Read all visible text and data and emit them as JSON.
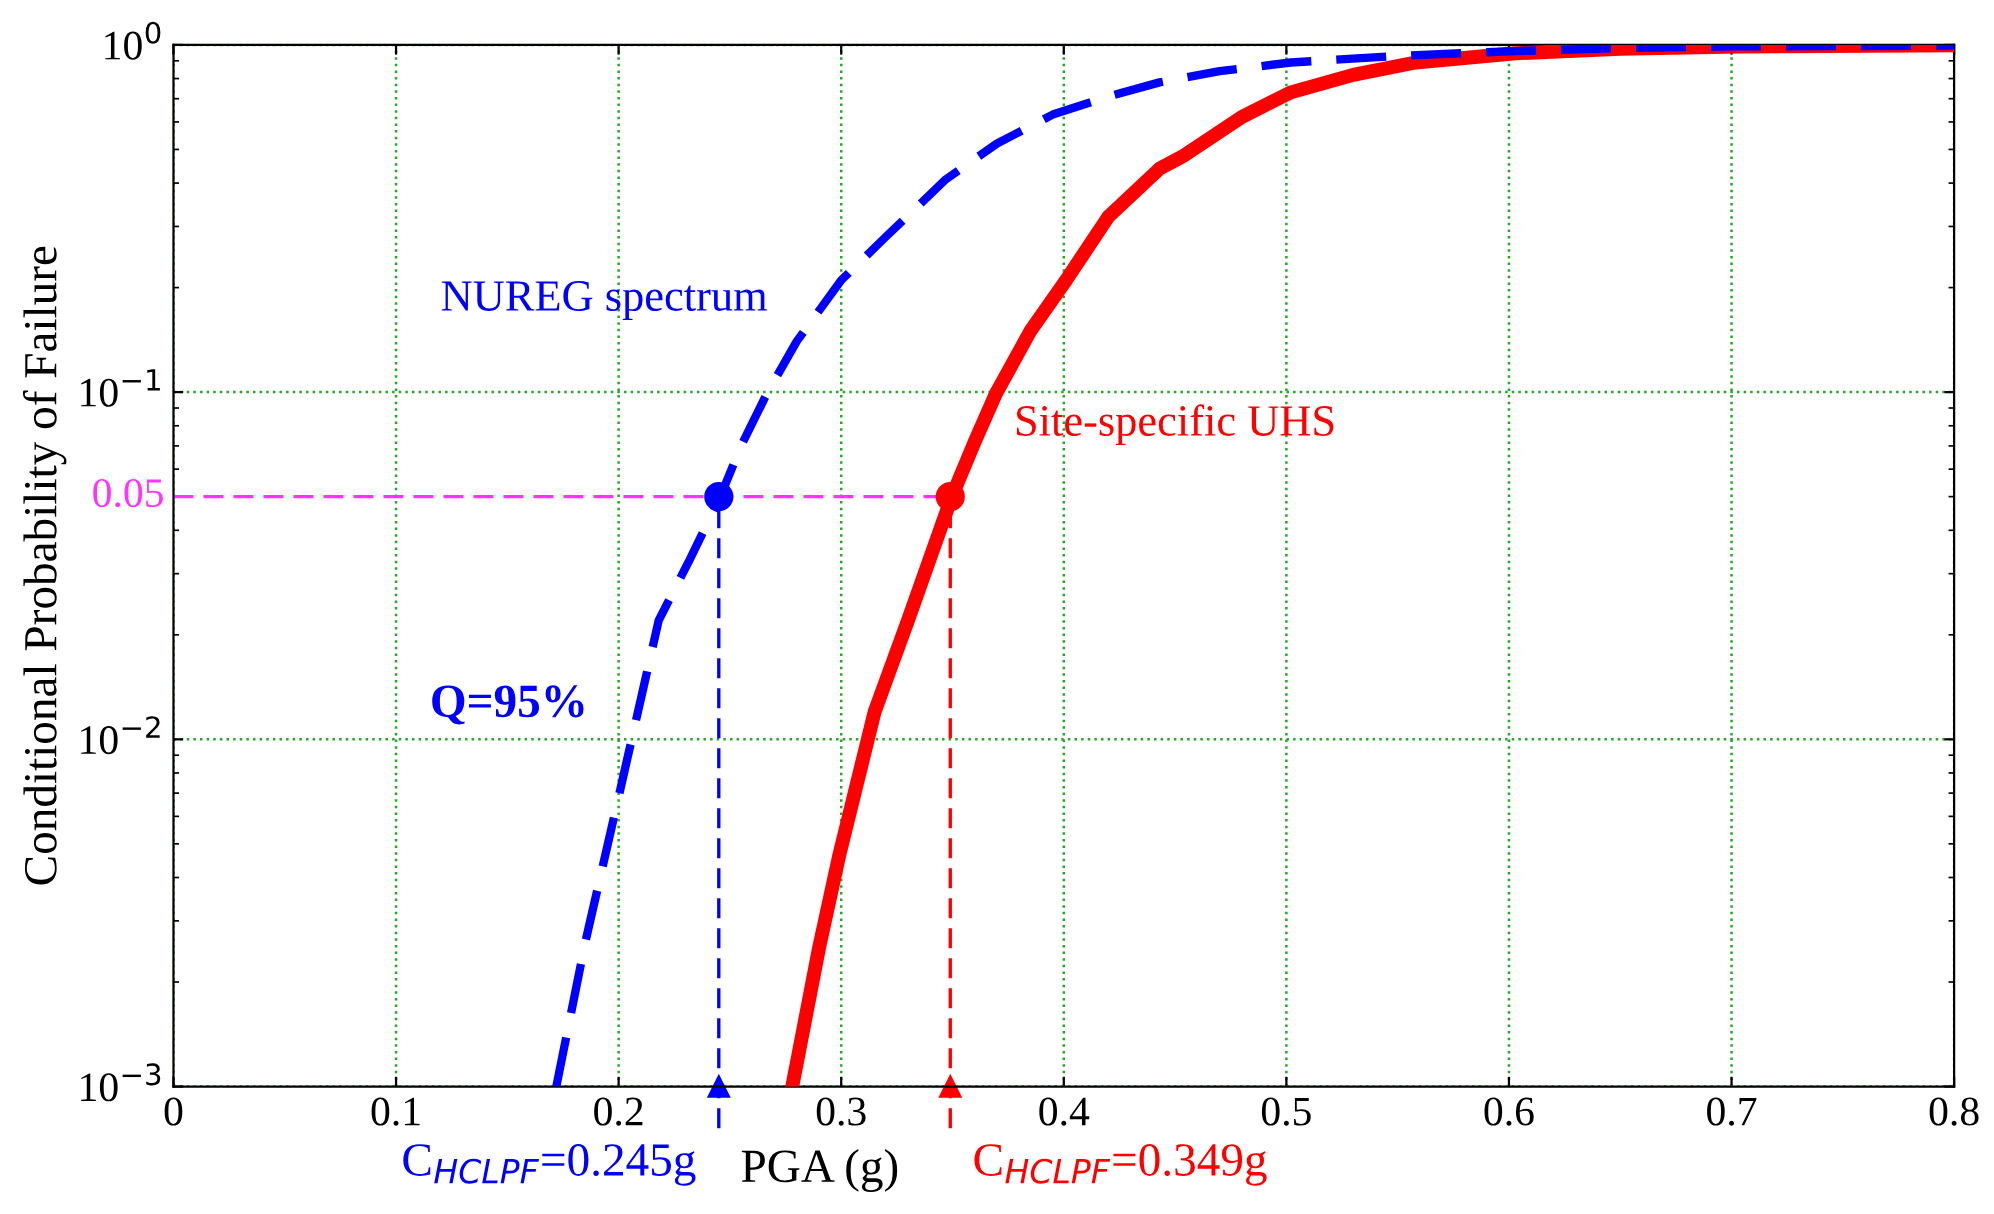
{
  "chart_data": {
    "type": "line",
    "xlabel": "PGA (g)",
    "ylabel": "Conditional Probability of Failure",
    "log": "y",
    "xlim": [
      0,
      0.8
    ],
    "ylim": [
      0.001,
      1
    ],
    "xticks": [
      0,
      0.1,
      0.2,
      0.3,
      0.4,
      0.5,
      0.6,
      0.7,
      0.8
    ],
    "yticks": [
      {
        "value": 0.001,
        "label": "10$^{−3}$"
      },
      {
        "value": 0.01,
        "label": "10$^{−2}$"
      },
      {
        "value": 0.1,
        "label": "10$^{−1}$"
      },
      {
        "value": 1,
        "label": "10$^{0}$"
      }
    ],
    "grid": true,
    "series": [
      {
        "name": "NUREG spectrum",
        "color": "#0000ff",
        "line_style": "dashed",
        "marker": "none",
        "x": [
          0.172,
          0.185,
          0.199,
          0.218,
          0.232,
          0.2457,
          0.255,
          0.2666,
          0.28,
          0.3,
          0.32,
          0.347,
          0.37,
          0.395,
          0.42,
          0.443,
          0.47,
          0.502,
          0.55,
          0.603,
          0.65,
          0.703,
          0.8
        ],
        "values": [
          0.001,
          0.0026,
          0.0064,
          0.022,
          0.033,
          0.05,
          0.07,
          0.099,
          0.14,
          0.21,
          0.28,
          0.41,
          0.52,
          0.63,
          0.71,
          0.78,
          0.84,
          0.89,
          0.93,
          0.96,
          0.98,
          0.99,
          0.995
        ]
      },
      {
        "name": "Site-specific UHS",
        "color": "#ff0000",
        "line_style": "solid",
        "marker": "none",
        "x": [
          0.278,
          0.29,
          0.299,
          0.315,
          0.33,
          0.3497,
          0.36,
          0.3695,
          0.385,
          0.401,
          0.42,
          0.443,
          0.454,
          0.48,
          0.502,
          0.53,
          0.558,
          0.603,
          0.65,
          0.703,
          0.8
        ],
        "values": [
          0.001,
          0.0025,
          0.0046,
          0.012,
          0.022,
          0.05,
          0.072,
          0.099,
          0.15,
          0.21,
          0.32,
          0.44,
          0.48,
          0.62,
          0.73,
          0.82,
          0.89,
          0.946,
          0.975,
          0.99,
          0.998
        ]
      },
      {
        "type": "scatter",
        "color": "#0000ff",
        "marker": "circle",
        "x": [
          0.245
        ],
        "values": [
          0.05
        ]
      },
      {
        "type": "scatter",
        "color": "#ff0000",
        "marker": "circle",
        "x": [
          0.349
        ],
        "values": [
          0.05
        ]
      }
    ],
    "ref_lines": [
      {
        "axis": "y",
        "value": 0.05,
        "label": "0.05",
        "color": "#ff33ff",
        "line_style": "dashed"
      },
      {
        "axis": "x",
        "value": 0.245,
        "label": "C$_{HCLPF}$=0.245g",
        "color": "#0000ff",
        "line_style": "dashed"
      },
      {
        "axis": "x",
        "value": 0.349,
        "label": "C$_{HCLPF}$=0.349g",
        "color": "#ff0000",
        "line_style": "dashed"
      }
    ],
    "annotations": [
      "Q=95%"
    ]
  }
}
